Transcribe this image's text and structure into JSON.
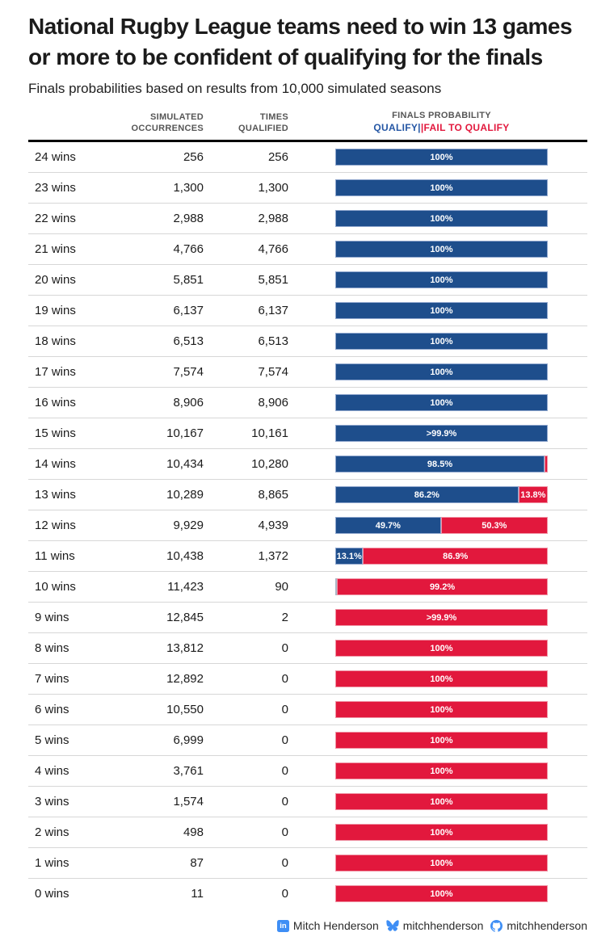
{
  "title": "National Rugby League teams need to win 13 games or more to be confident of qualifying for the finals",
  "subtitle": "Finals probabilities based on results from 10,000 simulated seasons",
  "columns": {
    "occurrences_line1": "SIMULATED",
    "occurrences_line2": "OCCURRENCES",
    "qualified_line1": "TIMES",
    "qualified_line2": "QUALIFIED",
    "probability": "FINALS PROBABILITY",
    "legend_qualify": "QUALIFY|",
    "legend_fail": "|FAIL TO QUALIFY"
  },
  "colors": {
    "qualify_bar": "#1e4e8c",
    "fail_bar": "#e2183d",
    "legend_qualify_text": "#2456a4",
    "legend_fail_text": "#e2183d",
    "header_rule": "#000000",
    "row_divider": "#d7d7d7",
    "footer_icon_blue": "#3e8ef5"
  },
  "chart_data": {
    "type": "bar",
    "orientation": "horizontal",
    "stacked": true,
    "unit": "percent",
    "series_names": [
      "Qualify",
      "Fail to qualify"
    ],
    "xlim": [
      0,
      100
    ],
    "rows": [
      {
        "label": "24 wins",
        "occurrences": "256",
        "qualified": "256",
        "qualify_pct": 100,
        "fail_pct": 0,
        "qualify_label": "100%",
        "fail_label": ""
      },
      {
        "label": "23 wins",
        "occurrences": "1,300",
        "qualified": "1,300",
        "qualify_pct": 100,
        "fail_pct": 0,
        "qualify_label": "100%",
        "fail_label": ""
      },
      {
        "label": "22 wins",
        "occurrences": "2,988",
        "qualified": "2,988",
        "qualify_pct": 100,
        "fail_pct": 0,
        "qualify_label": "100%",
        "fail_label": ""
      },
      {
        "label": "21 wins",
        "occurrences": "4,766",
        "qualified": "4,766",
        "qualify_pct": 100,
        "fail_pct": 0,
        "qualify_label": "100%",
        "fail_label": ""
      },
      {
        "label": "20 wins",
        "occurrences": "5,851",
        "qualified": "5,851",
        "qualify_pct": 100,
        "fail_pct": 0,
        "qualify_label": "100%",
        "fail_label": ""
      },
      {
        "label": "19 wins",
        "occurrences": "6,137",
        "qualified": "6,137",
        "qualify_pct": 100,
        "fail_pct": 0,
        "qualify_label": "100%",
        "fail_label": ""
      },
      {
        "label": "18 wins",
        "occurrences": "6,513",
        "qualified": "6,513",
        "qualify_pct": 100,
        "fail_pct": 0,
        "qualify_label": "100%",
        "fail_label": ""
      },
      {
        "label": "17 wins",
        "occurrences": "7,574",
        "qualified": "7,574",
        "qualify_pct": 100,
        "fail_pct": 0,
        "qualify_label": "100%",
        "fail_label": ""
      },
      {
        "label": "16 wins",
        "occurrences": "8,906",
        "qualified": "8,906",
        "qualify_pct": 100,
        "fail_pct": 0,
        "qualify_label": "100%",
        "fail_label": ""
      },
      {
        "label": "15 wins",
        "occurrences": "10,167",
        "qualified": "10,161",
        "qualify_pct": 100,
        "fail_pct": 0,
        "qualify_label": ">99.9%",
        "fail_label": ""
      },
      {
        "label": "14 wins",
        "occurrences": "10,434",
        "qualified": "10,280",
        "qualify_pct": 98.5,
        "fail_pct": 1.5,
        "qualify_label": "98.5%",
        "fail_label": ""
      },
      {
        "label": "13 wins",
        "occurrences": "10,289",
        "qualified": "8,865",
        "qualify_pct": 86.2,
        "fail_pct": 13.8,
        "qualify_label": "86.2%",
        "fail_label": "13.8%"
      },
      {
        "label": "12 wins",
        "occurrences": "9,929",
        "qualified": "4,939",
        "qualify_pct": 49.7,
        "fail_pct": 50.3,
        "qualify_label": "49.7%",
        "fail_label": "50.3%"
      },
      {
        "label": "11 wins",
        "occurrences": "10,438",
        "qualified": "1,372",
        "qualify_pct": 13.1,
        "fail_pct": 86.9,
        "qualify_label": "13.1%",
        "fail_label": "86.9%"
      },
      {
        "label": "10 wins",
        "occurrences": "11,423",
        "qualified": "90",
        "qualify_pct": 0.8,
        "fail_pct": 99.2,
        "qualify_label": "",
        "fail_label": "99.2%",
        "qualify_sliver": true
      },
      {
        "label": "9 wins",
        "occurrences": "12,845",
        "qualified": "2",
        "qualify_pct": 0,
        "fail_pct": 100,
        "qualify_label": "",
        "fail_label": ">99.9%"
      },
      {
        "label": "8 wins",
        "occurrences": "13,812",
        "qualified": "0",
        "qualify_pct": 0,
        "fail_pct": 100,
        "qualify_label": "",
        "fail_label": "100%"
      },
      {
        "label": "7 wins",
        "occurrences": "12,892",
        "qualified": "0",
        "qualify_pct": 0,
        "fail_pct": 100,
        "qualify_label": "",
        "fail_label": "100%"
      },
      {
        "label": "6 wins",
        "occurrences": "10,550",
        "qualified": "0",
        "qualify_pct": 0,
        "fail_pct": 100,
        "qualify_label": "",
        "fail_label": "100%"
      },
      {
        "label": "5 wins",
        "occurrences": "6,999",
        "qualified": "0",
        "qualify_pct": 0,
        "fail_pct": 100,
        "qualify_label": "",
        "fail_label": "100%"
      },
      {
        "label": "4 wins",
        "occurrences": "3,761",
        "qualified": "0",
        "qualify_pct": 0,
        "fail_pct": 100,
        "qualify_label": "",
        "fail_label": "100%"
      },
      {
        "label": "3 wins",
        "occurrences": "1,574",
        "qualified": "0",
        "qualify_pct": 0,
        "fail_pct": 100,
        "qualify_label": "",
        "fail_label": "100%"
      },
      {
        "label": "2 wins",
        "occurrences": "498",
        "qualified": "0",
        "qualify_pct": 0,
        "fail_pct": 100,
        "qualify_label": "",
        "fail_label": "100%"
      },
      {
        "label": "1 wins",
        "occurrences": "87",
        "qualified": "0",
        "qualify_pct": 0,
        "fail_pct": 100,
        "qualify_label": "",
        "fail_label": "100%"
      },
      {
        "label": "0 wins",
        "occurrences": "11",
        "qualified": "0",
        "qualify_pct": 0,
        "fail_pct": 100,
        "qualify_label": "",
        "fail_label": "100%"
      }
    ]
  },
  "footer": {
    "linkedin_icon_text": "in",
    "linkedin": "Mitch Henderson",
    "bluesky": "mitchhenderson",
    "github": "mitchhenderson"
  }
}
